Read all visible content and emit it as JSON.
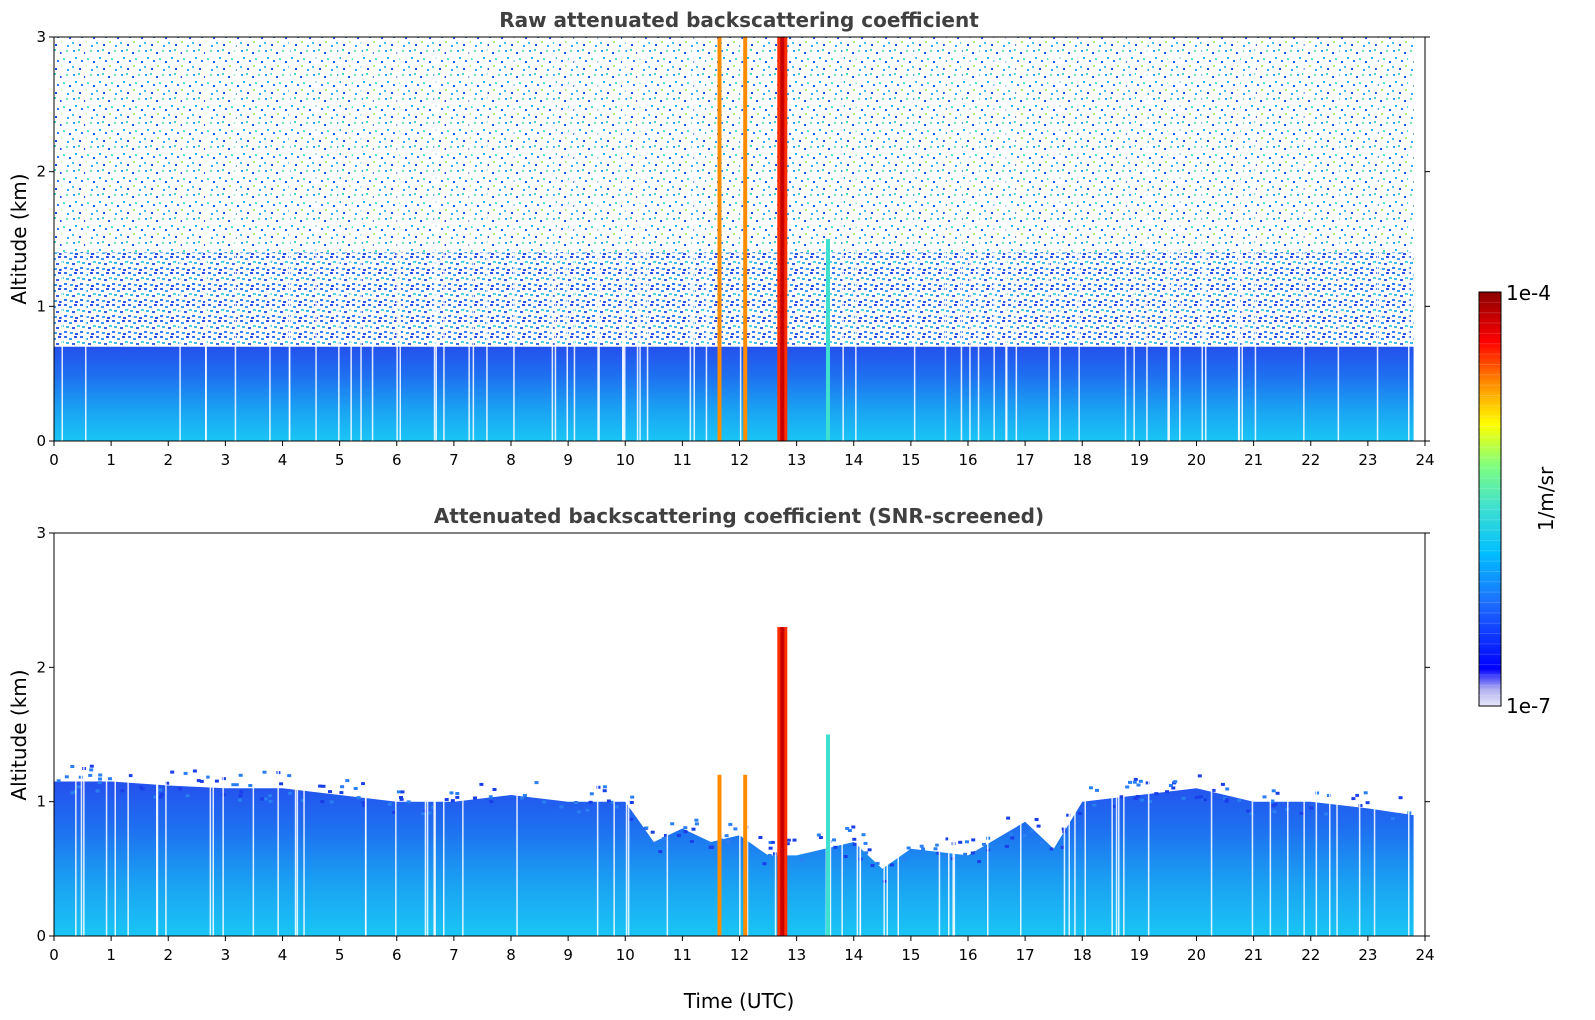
{
  "chart_data": [
    {
      "type": "heatmap",
      "title": "Raw attenuated backscattering coefficient",
      "xlabel": "",
      "ylabel": "Altitude (km)",
      "xlim": [
        0,
        24
      ],
      "ylim": [
        0,
        3
      ],
      "xticks": [
        "0",
        "1",
        "2",
        "3",
        "4",
        "5",
        "6",
        "7",
        "8",
        "9",
        "10",
        "11",
        "12",
        "13",
        "14",
        "15",
        "16",
        "17",
        "18",
        "19",
        "20",
        "21",
        "22",
        "23",
        "24"
      ],
      "yticks": [
        "0",
        "1",
        "2",
        "3"
      ],
      "data_end_hour": 23.8,
      "values_description_levels": {
        "boundary_layer_top_km": 0.7,
        "noise_scatter_up_to_km": 3
      },
      "features": [
        {
          "time_utc": 11.65,
          "altitude_km": [
            0,
            3
          ],
          "level": "high"
        },
        {
          "time_utc": 12.1,
          "altitude_km": [
            0,
            3
          ],
          "level": "high"
        },
        {
          "time_utc": 12.75,
          "altitude_km": [
            0,
            3
          ],
          "level": "very high"
        },
        {
          "time_utc": 13.55,
          "altitude_km": [
            0,
            1.5
          ],
          "level": "medium"
        }
      ]
    },
    {
      "type": "heatmap",
      "title": "Attenuated backscattering coefficient (SNR-screened)",
      "xlabel": "Time (UTC)",
      "ylabel": "Altitude (km)",
      "xlim": [
        0,
        24
      ],
      "ylim": [
        0,
        3
      ],
      "xticks": [
        "0",
        "1",
        "2",
        "3",
        "4",
        "5",
        "6",
        "7",
        "8",
        "9",
        "10",
        "11",
        "12",
        "13",
        "14",
        "15",
        "16",
        "17",
        "18",
        "19",
        "20",
        "21",
        "22",
        "23",
        "24"
      ],
      "yticks": [
        "0",
        "1",
        "2",
        "3"
      ],
      "data_end_hour": 23.8,
      "screened_top_km": [
        [
          0,
          1.15
        ],
        [
          1,
          1.15
        ],
        [
          2,
          1.12
        ],
        [
          3,
          1.1
        ],
        [
          4,
          1.1
        ],
        [
          5,
          1.05
        ],
        [
          6,
          1.0
        ],
        [
          7,
          1.0
        ],
        [
          8,
          1.05
        ],
        [
          9,
          1.0
        ],
        [
          10,
          1.0
        ],
        [
          10.5,
          0.7
        ],
        [
          11,
          0.8
        ],
        [
          11.5,
          0.7
        ],
        [
          12,
          0.75
        ],
        [
          12.5,
          0.6
        ],
        [
          13,
          0.6
        ],
        [
          14,
          0.7
        ],
        [
          14.5,
          0.5
        ],
        [
          15,
          0.65
        ],
        [
          16,
          0.6
        ],
        [
          17,
          0.85
        ],
        [
          17.5,
          0.65
        ],
        [
          18,
          1.0
        ],
        [
          19,
          1.05
        ],
        [
          20,
          1.1
        ],
        [
          21,
          1.0
        ],
        [
          22,
          1.0
        ],
        [
          23,
          0.95
        ],
        [
          23.8,
          0.9
        ]
      ]
    }
  ],
  "colorbar": {
    "label": "1/m/sr",
    "max_label": "1e-4",
    "min_label": "1e-7",
    "scale": "log",
    "colormap": [
      "#e8e8f8",
      "#0000ff",
      "#1e90ff",
      "#00bfff",
      "#40e0d0",
      "#7fff7f",
      "#ffff00",
      "#ff8c00",
      "#ff0000",
      "#8b0000"
    ]
  }
}
